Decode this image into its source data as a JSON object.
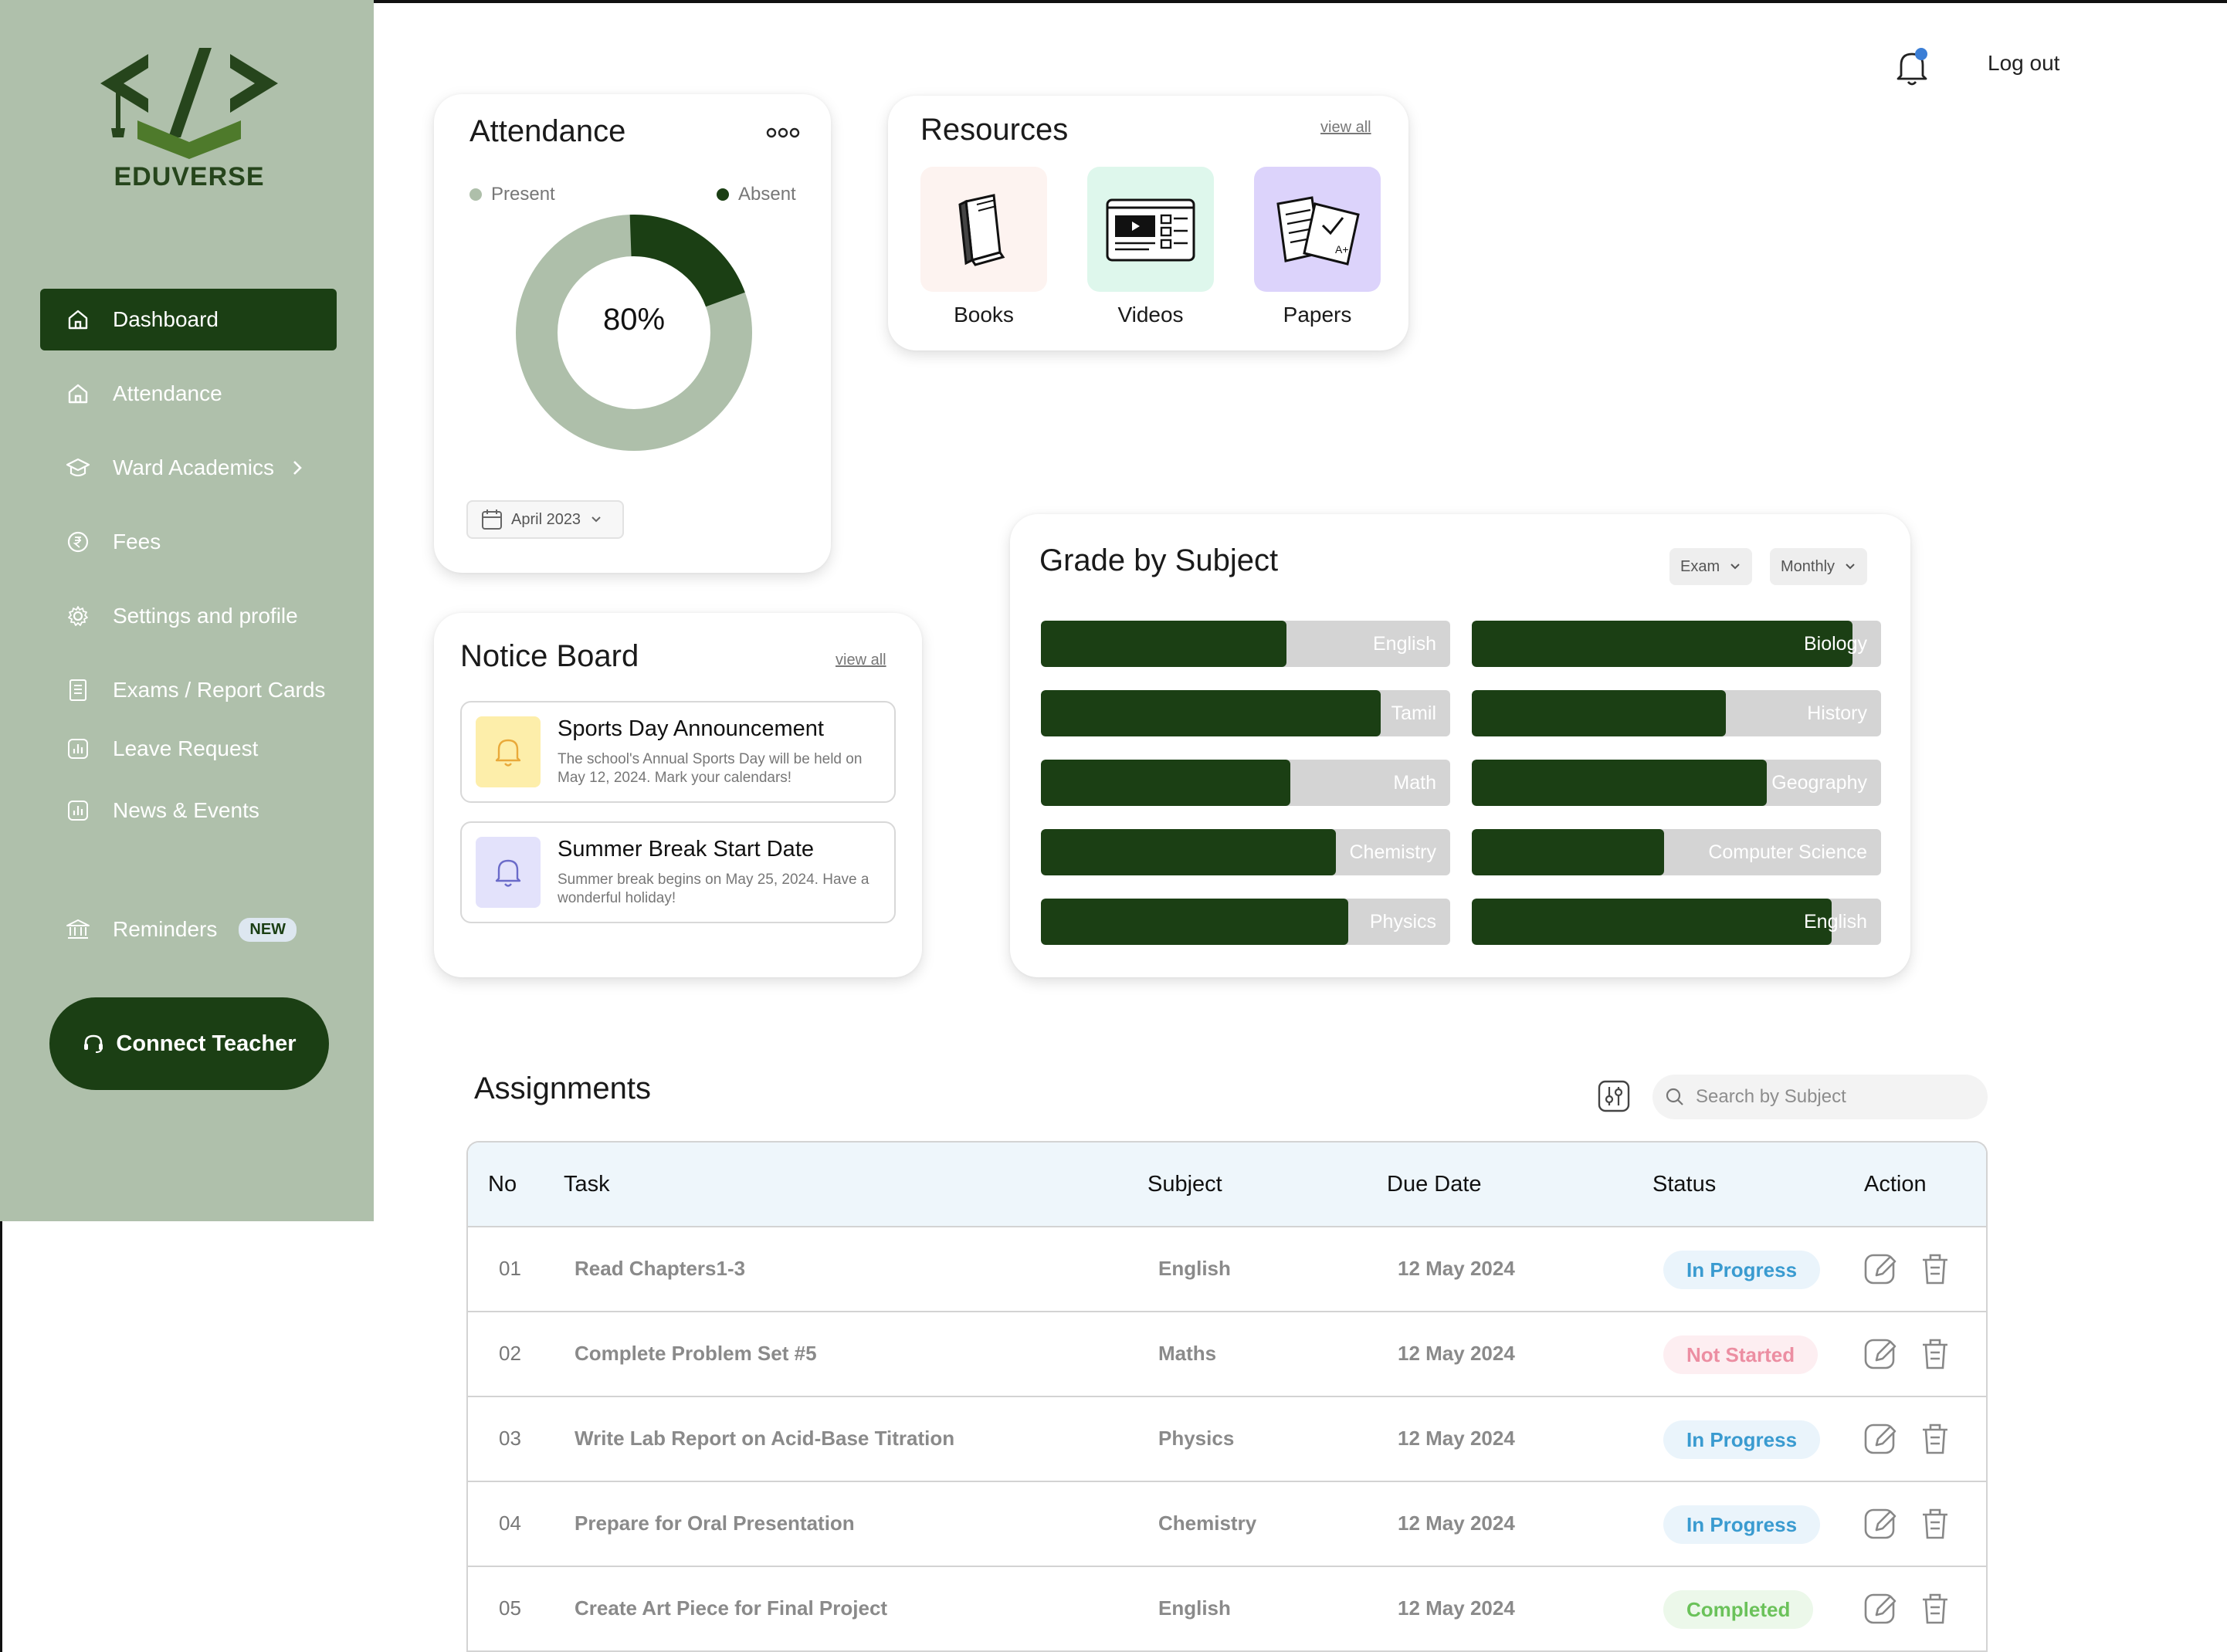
{
  "brand": {
    "name": "EDUVERSE"
  },
  "sidebar": {
    "items": [
      {
        "label": "Dashboard",
        "icon": "home-icon"
      },
      {
        "label": "Attendance",
        "icon": "home-icon"
      },
      {
        "label": "Ward Academics",
        "icon": "graduation-cap-icon"
      },
      {
        "label": "Fees",
        "icon": "rupee-icon"
      },
      {
        "label": "Settings and profile",
        "icon": "gear-icon"
      },
      {
        "label": "Exams / Report Cards",
        "icon": "report-icon"
      },
      {
        "label": "Leave Request",
        "icon": "chart-doc-icon"
      },
      {
        "label": "News & Events",
        "icon": "chart-doc-icon"
      },
      {
        "label": "Reminders",
        "icon": "bank-icon",
        "badge": "NEW"
      }
    ],
    "connect_label": "Connect Teacher"
  },
  "header": {
    "logout_label": "Log out"
  },
  "attendance": {
    "title": "Attendance",
    "legend_present": "Present",
    "legend_absent": "Absent",
    "percent_label": "80%",
    "absent_fraction": 0.2,
    "date_label": "April 2023"
  },
  "resources": {
    "title": "Resources",
    "view_all": "view all",
    "items": [
      {
        "label": "Books",
        "bg": "#fdf3f0"
      },
      {
        "label": "Videos",
        "bg": "#def7ec"
      },
      {
        "label": "Papers",
        "bg": "#dcd3fb"
      }
    ]
  },
  "notice_board": {
    "title": "Notice Board",
    "view_all": "view all",
    "notices": [
      {
        "title": "Sports Day Announcement",
        "text": "The school's Annual Sports Day will be held on May 12, 2024. Mark your calendars!",
        "bg": "#fdeeaa"
      },
      {
        "title": "Summer Break Start Date",
        "text": "Summer break begins on May 25, 2024. Have a wonderful holiday!",
        "bg": "#e3e2fb"
      }
    ]
  },
  "grades": {
    "title": "Grade by Subject",
    "filter_exam": "Exam",
    "filter_period": "Monthly",
    "left": [
      {
        "subject": "English",
        "value": 0.6
      },
      {
        "subject": "Tamil",
        "value": 0.83
      },
      {
        "subject": "Math",
        "value": 0.61
      },
      {
        "subject": "Chemistry",
        "value": 0.72
      },
      {
        "subject": "Physics",
        "value": 0.75
      }
    ],
    "right": [
      {
        "subject": "Biology",
        "value": 0.93
      },
      {
        "subject": "History",
        "value": 0.62
      },
      {
        "subject": "Geography",
        "value": 0.72
      },
      {
        "subject": "Computer Science",
        "value": 0.47
      },
      {
        "subject": "English",
        "value": 0.88
      }
    ]
  },
  "assignments": {
    "title": "Assignments",
    "search_placeholder": "Search by Subject",
    "columns": {
      "no": "No",
      "task": "Task",
      "subject": "Subject",
      "due": "Due Date",
      "status": "Status",
      "action": "Action"
    },
    "rows": [
      {
        "no": "01",
        "task": "Read Chapters1-3",
        "subject": "English",
        "due": "12 May 2024",
        "status": "In Progress",
        "kind": "progress"
      },
      {
        "no": "02",
        "task": "Complete Problem Set #5",
        "subject": "Maths",
        "due": "12 May 2024",
        "status": "Not Started",
        "kind": "notstarted"
      },
      {
        "no": "03",
        "task": "Write Lab Report on Acid-Base Titration",
        "subject": "Physics",
        "due": "12 May 2024",
        "status": "In Progress",
        "kind": "progress"
      },
      {
        "no": "04",
        "task": "Prepare for Oral Presentation",
        "subject": "Chemistry",
        "due": "12 May 2024",
        "status": "In Progress",
        "kind": "progress"
      },
      {
        "no": "05",
        "task": "Create Art Piece for Final Project",
        "subject": "English",
        "due": "12 May 2024",
        "status": "Completed",
        "kind": "completed"
      }
    ]
  },
  "colors": {
    "sidebar_bg": "#afc0ab",
    "accent_dark": "#1b3f14",
    "present": "#aebfaa",
    "absent": "#1b3f14"
  }
}
